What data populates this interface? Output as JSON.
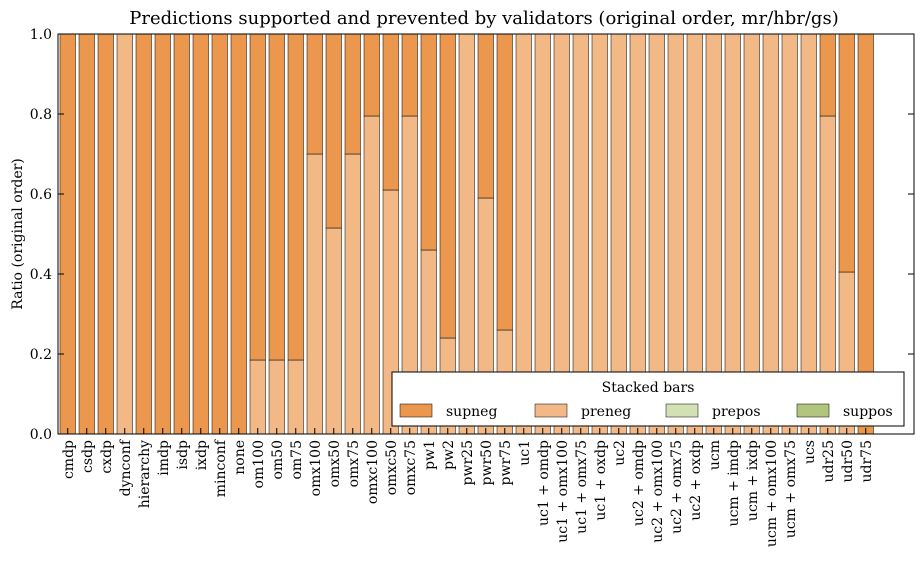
{
  "chart_data": {
    "type": "bar",
    "stacked": true,
    "title": "Predictions supported and prevented by validators (original order, mr/hbr/gs)",
    "ylabel": "Ratio (original order)",
    "xlabel": "",
    "ylim": [
      0,
      1.0
    ],
    "yticks": [
      "0.0",
      "0.2",
      "0.4",
      "0.6",
      "0.8",
      "1.0"
    ],
    "grid": false,
    "categories": [
      "cmdp",
      "csdp",
      "cxdp",
      "dynconf",
      "hierarchy",
      "imdp",
      "isdp",
      "ixdp",
      "minconf",
      "none",
      "om100",
      "om50",
      "om75",
      "omx100",
      "omx50",
      "omx75",
      "omxc100",
      "omxc50",
      "omxc75",
      "pw1",
      "pw2",
      "pwr25",
      "pwr50",
      "pwr75",
      "uc1",
      "uc1 + omdp",
      "uc1 + omx100",
      "uc1 + omx75",
      "uc1 + oxdp",
      "uc2",
      "uc2 + omdp",
      "uc2 + omx100",
      "uc2 + omx75",
      "uc2 + oxdp",
      "ucm",
      "ucm + imdp",
      "ucm + ixdp",
      "ucm + omx100",
      "ucm + omx75",
      "ucs",
      "udr25",
      "udr50",
      "udr75"
    ],
    "series": [
      {
        "name": "preneg",
        "color": "#f2b886",
        "values": [
          0,
          0,
          0,
          1,
          0,
          0,
          0,
          0,
          0,
          0,
          0.185,
          0.185,
          0.185,
          0.7,
          0.515,
          0.7,
          0.795,
          0.61,
          0.795,
          0.46,
          0.24,
          1,
          0.59,
          0.26,
          1,
          1,
          1,
          1,
          1,
          1,
          1,
          1,
          1,
          1,
          1,
          1,
          1,
          1,
          1,
          1,
          0.795,
          0.405,
          0
        ]
      },
      {
        "name": "supneg",
        "color": "#eb984e",
        "values": [
          1,
          1,
          1,
          0,
          1,
          1,
          1,
          1,
          1,
          1,
          0.815,
          0.815,
          0.815,
          0.3,
          0.485,
          0.3,
          0.205,
          0.39,
          0.205,
          0.54,
          0.76,
          0,
          0.41,
          0.74,
          0,
          0,
          0,
          0,
          0,
          0,
          0,
          0,
          0,
          0,
          0,
          0,
          0,
          0,
          0,
          0,
          0.205,
          0.595,
          1
        ]
      },
      {
        "name": "prepos",
        "color": "#d3e0b4",
        "values": [
          0,
          0,
          0,
          0,
          0,
          0,
          0,
          0,
          0,
          0,
          0,
          0,
          0,
          0,
          0,
          0,
          0,
          0,
          0,
          0,
          0,
          0,
          0,
          0,
          0,
          0,
          0,
          0,
          0,
          0,
          0,
          0,
          0,
          0,
          0,
          0,
          0,
          0,
          0,
          0,
          0,
          0,
          0
        ]
      },
      {
        "name": "suppos",
        "color": "#b2c57e",
        "values": [
          0,
          0,
          0,
          0,
          0,
          0,
          0,
          0,
          0,
          0,
          0,
          0,
          0,
          0,
          0,
          0,
          0,
          0,
          0,
          0,
          0,
          0,
          0,
          0,
          0,
          0,
          0,
          0,
          0,
          0,
          0,
          0,
          0,
          0,
          0,
          0,
          0,
          0,
          0,
          0,
          0,
          0,
          0
        ]
      }
    ],
    "legend": {
      "title": "Stacked bars",
      "placement": "bottom-right",
      "entries": [
        {
          "label": "supneg",
          "color": "#eb984e"
        },
        {
          "label": "preneg",
          "color": "#f2b886"
        },
        {
          "label": "prepos",
          "color": "#d3e0b4"
        },
        {
          "label": "suppos",
          "color": "#b2c57e"
        }
      ]
    }
  }
}
